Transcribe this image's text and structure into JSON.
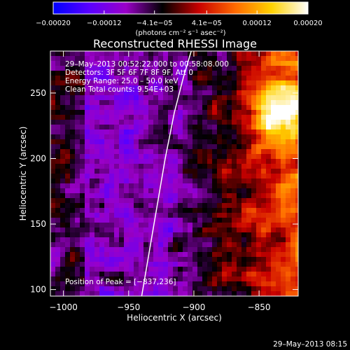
{
  "chart_data": {
    "type": "heatmap",
    "title": "Reconstructed RHESSI Image",
    "xlabel": "Heliocentric X (arcsec)",
    "ylabel": "Heliocentric Y (arcsec)",
    "xlim": [
      -1010,
      -820
    ],
    "ylim": [
      95,
      282
    ],
    "x_ticks": [
      -1000,
      -950,
      -900,
      -850
    ],
    "x_tick_labels": [
      "−1000",
      "−950",
      "−900",
      "−850"
    ],
    "y_ticks": [
      100,
      150,
      200,
      250
    ],
    "y_tick_labels": [
      "100",
      "150",
      "200",
      "250"
    ],
    "colorbar": {
      "range": [
        -0.0002,
        0.0002
      ],
      "ticks": [
        -0.0002,
        -0.00012,
        -4.1e-05,
        4.1e-05,
        0.00012,
        0.0002
      ],
      "tick_labels": [
        "−0.00020",
        "−0.00012",
        "−4.1e−05",
        "4.1e−05",
        "0.00012",
        "0.00020"
      ],
      "units_label": "(photons cm⁻² s⁻¹ asec⁻²)",
      "colormap": [
        "#0000ff",
        "#5a00ff",
        "#9a00c8",
        "#000000",
        "#c80000",
        "#ff6a00",
        "#ffd200",
        "#ffffff"
      ]
    },
    "annotations": [
      "29–May–2013 00:52:22.000 to 00:58:08.000",
      "Detectors: 3F 5F 6F 7F 8F 9F, Att 0",
      "Energy Range: 25.0 – 50.0 keV",
      "Clean    Total counts: 9.54E+03"
    ],
    "peak_label": "Position of Peak = [−837,236]",
    "peak": {
      "x": -837,
      "y": 236
    },
    "limb_curve": {
      "x": [
        -940,
        -934,
        -928,
        -922,
        -915,
        -908,
        -902
      ],
      "y": [
        95,
        130,
        165,
        200,
        235,
        262,
        282
      ]
    },
    "grid": false
  },
  "footer": {
    "timestamp": "29–May–2013 08:15"
  }
}
